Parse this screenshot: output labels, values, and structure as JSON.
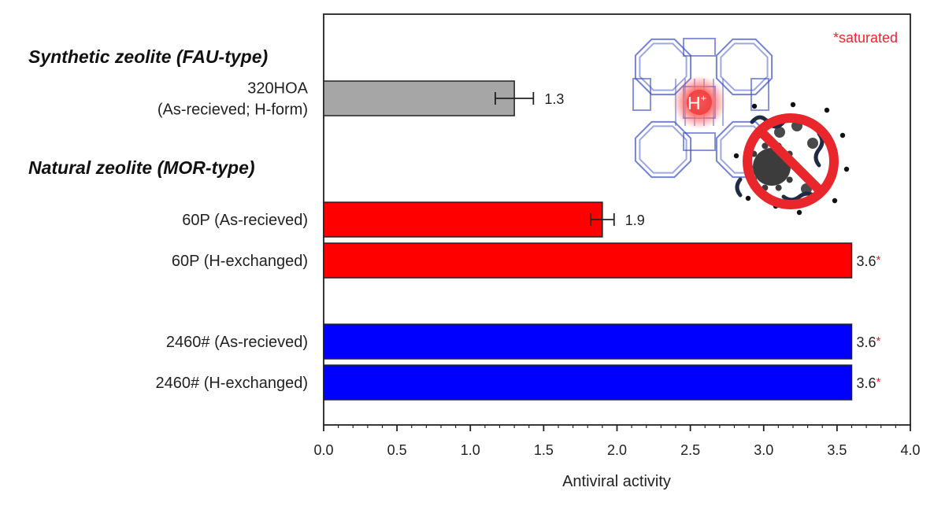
{
  "chart_data": {
    "type": "bar",
    "orientation": "horizontal",
    "xlabel": "Antiviral activity",
    "xlim": [
      0.0,
      4.0
    ],
    "x_ticks": [
      "0.0",
      "0.5",
      "1.0",
      "1.5",
      "2.0",
      "2.5",
      "3.0",
      "3.5",
      "4.0"
    ],
    "grid": false,
    "note": "*saturated",
    "note_color": "#e8262b",
    "groups": [
      {
        "title": "Synthetic zeolite (FAU-type)"
      },
      {
        "title": "Natural zeolite (MOR-type)"
      }
    ],
    "bars": [
      {
        "label": [
          "320HOA",
          "(As-recieved; H-form)"
        ],
        "value": 1.3,
        "error": 0.13,
        "value_label": "1.3",
        "saturated": false,
        "color": "#a6a6a6",
        "group": 0
      },
      {
        "label": [
          "60P (As-recieved)"
        ],
        "value": 1.9,
        "error": 0.08,
        "value_label": "1.9",
        "saturated": false,
        "color": "#ff0000",
        "group": 1
      },
      {
        "label": [
          "60P (H-exchanged)"
        ],
        "value": 3.6,
        "error": null,
        "value_label": "3.6",
        "saturated": true,
        "color": "#ff0000",
        "group": 1
      },
      {
        "label": [
          "2460# (As-recieved)"
        ],
        "value": 3.6,
        "error": null,
        "value_label": "3.6",
        "saturated": true,
        "color": "#0000ff",
        "group": 1
      },
      {
        "label": [
          "2460# (H-exchanged)"
        ],
        "value": 3.6,
        "error": null,
        "value_label": "3.6",
        "saturated": true,
        "color": "#0000ff",
        "group": 1
      }
    ],
    "inset": {
      "ion_label": "H",
      "ion_charge": "+",
      "framework_color": "#3b4fc4",
      "prohibition_color": "#e8262b"
    }
  }
}
